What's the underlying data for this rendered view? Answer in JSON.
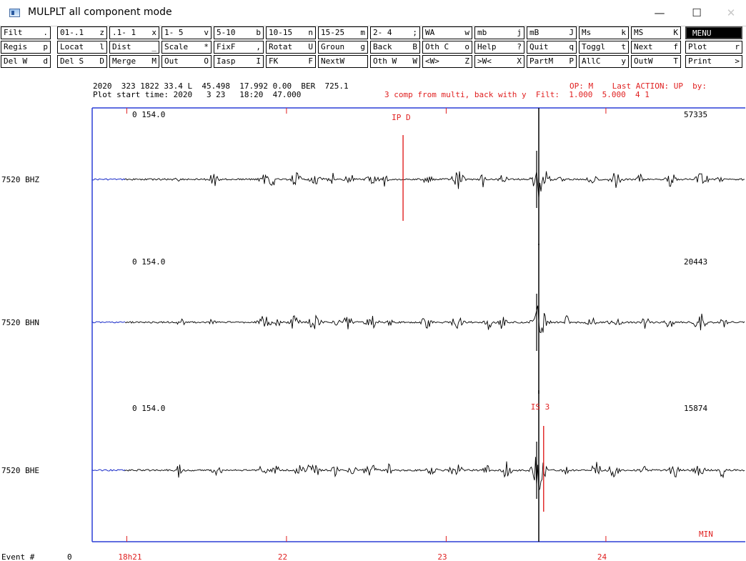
{
  "window": {
    "title": "MULPLT all component mode",
    "controls": {
      "minimize": "—",
      "maximize": "☐",
      "close": "✕"
    }
  },
  "menu": {
    "rows": [
      [
        {
          "label": "Filt",
          "key": "."
        },
        {
          "label": "01-.1",
          "key": "z"
        },
        {
          "label": ".1- 1",
          "key": "x"
        },
        {
          "label": "1- 5",
          "key": "v"
        },
        {
          "label": "5-10",
          "key": "b"
        },
        {
          "label": "10-15",
          "key": "n"
        },
        {
          "label": "15-25",
          "key": "m"
        },
        {
          "label": "2- 4",
          "key": ";"
        },
        {
          "label": "WA",
          "key": "w"
        },
        {
          "label": "mb",
          "key": "j"
        },
        {
          "label": "mB",
          "key": "J"
        },
        {
          "label": "Ms",
          "key": "k"
        },
        {
          "label": "MS",
          "key": "K"
        },
        {
          "label": "MENU",
          "key": "",
          "dark": true
        }
      ],
      [
        {
          "label": "Regis",
          "key": "p"
        },
        {
          "label": "Locat",
          "key": "l"
        },
        {
          "label": "Dist",
          "key": "_"
        },
        {
          "label": "Scale",
          "key": "*"
        },
        {
          "label": "FixF",
          "key": ","
        },
        {
          "label": "Rotat",
          "key": "U"
        },
        {
          "label": "Groun",
          "key": "g"
        },
        {
          "label": "Back",
          "key": "B"
        },
        {
          "label": "Oth C",
          "key": "o"
        },
        {
          "label": "Help",
          "key": "?"
        },
        {
          "label": "Quit",
          "key": "q"
        },
        {
          "label": "Toggl",
          "key": "t"
        },
        {
          "label": "Next",
          "key": "f"
        },
        {
          "label": "Plot",
          "key": "r"
        }
      ],
      [
        {
          "label": "Del W",
          "key": "d"
        },
        {
          "label": "Del S",
          "key": "D"
        },
        {
          "label": "Merge",
          "key": "M"
        },
        {
          "label": "Out",
          "key": "O"
        },
        {
          "label": "Iasp",
          "key": "I"
        },
        {
          "label": "FK",
          "key": "F"
        },
        {
          "label": "NextW",
          "key": ""
        },
        {
          "label": "Oth W",
          "key": "W"
        },
        {
          "label": "<W>",
          "key": "Z"
        },
        {
          "label": ">W<",
          "key": "X"
        },
        {
          "label": "PartM",
          "key": "P"
        },
        {
          "label": "AllC",
          "key": "y"
        },
        {
          "label": "OutW",
          "key": "T"
        },
        {
          "label": "Print",
          "key": ">"
        }
      ]
    ]
  },
  "header": {
    "event_line": "2020  323 1822 33.4 L  45.498  17.992 0.00  BER  725.1",
    "plot_start": "Plot start time: 2020   3 23   18:20  47.000",
    "comp_note": "3 comp from multi, back with y  Filt:  1.000  5.000  4 1",
    "op_status": "OP: M    Last ACTION: UP  by:"
  },
  "plot": {
    "frame_color": "#2b3fd6",
    "trace_color": "#000000",
    "pick_color": "#e02020",
    "lead_color": "#1a2cc8",
    "channels": [
      {
        "station": "7520",
        "component": "BHZ",
        "offset_label": "0 154.0",
        "max_amp": "57335"
      },
      {
        "station": "7520",
        "component": "BHN",
        "offset_label": "0 154.0",
        "max_amp": "20443"
      },
      {
        "station": "7520",
        "component": "BHE",
        "offset_label": "0 154.0",
        "max_amp": "15874"
      }
    ],
    "picks": [
      {
        "label": "IP D",
        "channel": 0,
        "time_min": 22.73
      },
      {
        "label": "IS    3",
        "channel": 2,
        "time_min": 23.61
      }
    ],
    "time_axis": {
      "unit_label": "MIN",
      "ticks": [
        {
          "value": 21,
          "label": "18h21"
        },
        {
          "value": 22,
          "label": "22"
        },
        {
          "value": 23,
          "label": "23"
        },
        {
          "value": 24,
          "label": "24"
        }
      ]
    },
    "footer": {
      "event_label": "Event #",
      "event_number": "0"
    }
  }
}
